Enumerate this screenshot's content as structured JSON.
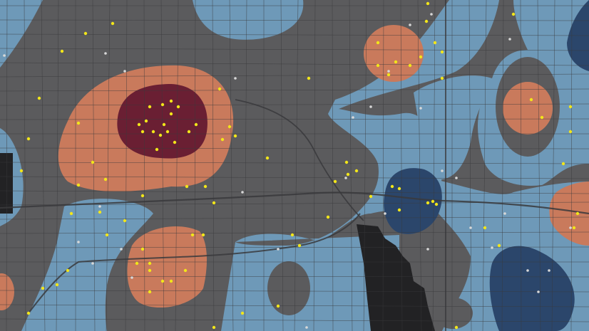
{
  "map": {
    "layer_colors": {
      "base": "#5b5b5d",
      "low": "#6e99b8",
      "medium": "#c97a5c",
      "high": "#6a1f33",
      "very_low": "#2b466b",
      "water": "#222224",
      "road": "#3a3a3c"
    },
    "point_colors": {
      "primary": "#f2e61a",
      "secondary": "#d8d8d8"
    }
  }
}
